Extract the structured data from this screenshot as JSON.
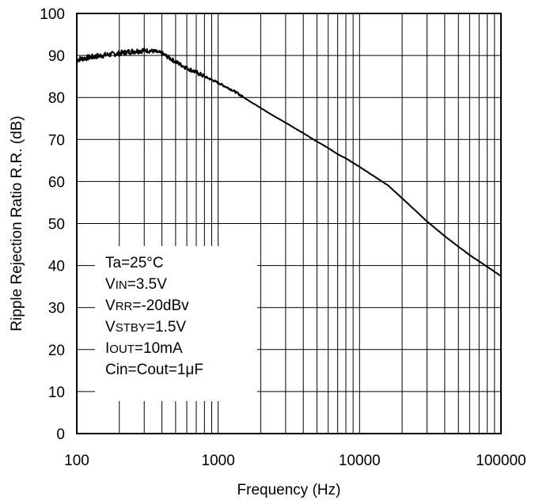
{
  "chart_data": {
    "type": "line",
    "xlabel": "Frequency (Hz)",
    "ylabel": "Ripple Rejection Ratio R.R. (dB)",
    "xscale": "log",
    "xlim": [
      100,
      100000
    ],
    "ylim": [
      0,
      100
    ],
    "grid": true,
    "x_ticks": [
      "100",
      "1000",
      "10000",
      "100000"
    ],
    "y_ticks": [
      "0",
      "10",
      "20",
      "30",
      "40",
      "50",
      "60",
      "70",
      "80",
      "90",
      "100"
    ],
    "annotation": {
      "lines": [
        {
          "main": "Ta=25",
          "sub": "",
          "tail": "°C"
        },
        {
          "main": "V",
          "sub": "IN",
          "tail": "=3.5V"
        },
        {
          "main": "V",
          "sub": "RR",
          "tail": "=-20dBv"
        },
        {
          "main": "V",
          "sub": "STBY",
          "tail": "=1.5V"
        },
        {
          "main": "I",
          "sub": "OUT",
          "tail": "=10mA"
        },
        {
          "main": "Cin=Cout=1μF",
          "sub": "",
          "tail": ""
        }
      ]
    },
    "series": [
      {
        "x": [
          100,
          120,
          150,
          200,
          250,
          300,
          350,
          400,
          500,
          600,
          700,
          800,
          1000,
          1300,
          1600,
          2000,
          2500,
          3000,
          4000,
          5000,
          6000,
          7000,
          8000,
          10000,
          13000,
          16000,
          20000,
          25000,
          30000,
          40000,
          50000,
          60000,
          70000,
          80000,
          100000
        ],
        "y": [
          89,
          89.5,
          90,
          90.5,
          91,
          91.2,
          91,
          90.5,
          88.5,
          87,
          86,
          85,
          83.5,
          81.5,
          79.5,
          77.5,
          75.5,
          74,
          71.5,
          69.5,
          68,
          66.5,
          65.5,
          63.5,
          61,
          59,
          56,
          53,
          50.5,
          47,
          44.5,
          42.5,
          41,
          39.7,
          37.5
        ]
      }
    ]
  }
}
